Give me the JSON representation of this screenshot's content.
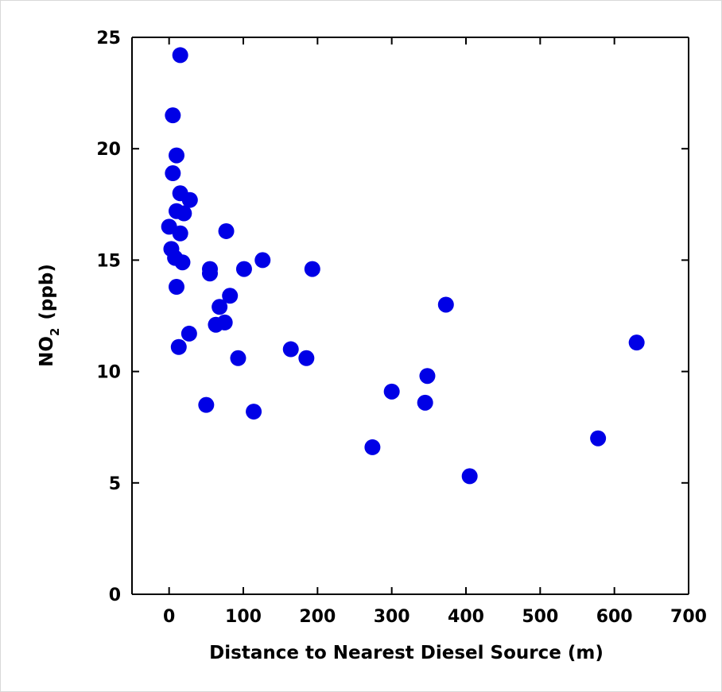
{
  "chart_data": {
    "type": "scatter",
    "xlabel": "Distance to Nearest Diesel Source (m)",
    "ylabel": {
      "main": "NO",
      "subscript": "2",
      "unit": "(ppb)"
    },
    "xlim": [
      -50,
      700
    ],
    "ylim": [
      0,
      25
    ],
    "xticks": [
      0,
      100,
      200,
      300,
      400,
      500,
      600,
      700
    ],
    "yticks": [
      0,
      5,
      10,
      15,
      20,
      25
    ],
    "grid": false,
    "legend": "none",
    "marker_color": "#0000e6",
    "points": [
      {
        "x": 15,
        "y": 24.2
      },
      {
        "x": 5,
        "y": 21.5
      },
      {
        "x": 10,
        "y": 19.7
      },
      {
        "x": 5,
        "y": 18.9
      },
      {
        "x": 15,
        "y": 18.0
      },
      {
        "x": 28,
        "y": 17.7
      },
      {
        "x": 10,
        "y": 17.2
      },
      {
        "x": 20,
        "y": 17.1
      },
      {
        "x": 0,
        "y": 16.5
      },
      {
        "x": 15,
        "y": 16.2
      },
      {
        "x": 77,
        "y": 16.3
      },
      {
        "x": 3,
        "y": 15.5
      },
      {
        "x": 8,
        "y": 15.1
      },
      {
        "x": 18,
        "y": 14.9
      },
      {
        "x": 126,
        "y": 15.0
      },
      {
        "x": 55,
        "y": 14.6
      },
      {
        "x": 55,
        "y": 14.4
      },
      {
        "x": 101,
        "y": 14.6
      },
      {
        "x": 193,
        "y": 14.6
      },
      {
        "x": 10,
        "y": 13.8
      },
      {
        "x": 82,
        "y": 13.4
      },
      {
        "x": 68,
        "y": 12.9
      },
      {
        "x": 373,
        "y": 13.0
      },
      {
        "x": 63,
        "y": 12.1
      },
      {
        "x": 75,
        "y": 12.2
      },
      {
        "x": 27,
        "y": 11.7
      },
      {
        "x": 630,
        "y": 11.3
      },
      {
        "x": 13,
        "y": 11.1
      },
      {
        "x": 164,
        "y": 11.0
      },
      {
        "x": 93,
        "y": 10.6
      },
      {
        "x": 185,
        "y": 10.6
      },
      {
        "x": 348,
        "y": 9.8
      },
      {
        "x": 300,
        "y": 9.1
      },
      {
        "x": 345,
        "y": 8.6
      },
      {
        "x": 50,
        "y": 8.5
      },
      {
        "x": 114,
        "y": 8.2
      },
      {
        "x": 578,
        "y": 7.0
      },
      {
        "x": 274,
        "y": 6.6
      },
      {
        "x": 405,
        "y": 5.3
      }
    ]
  }
}
